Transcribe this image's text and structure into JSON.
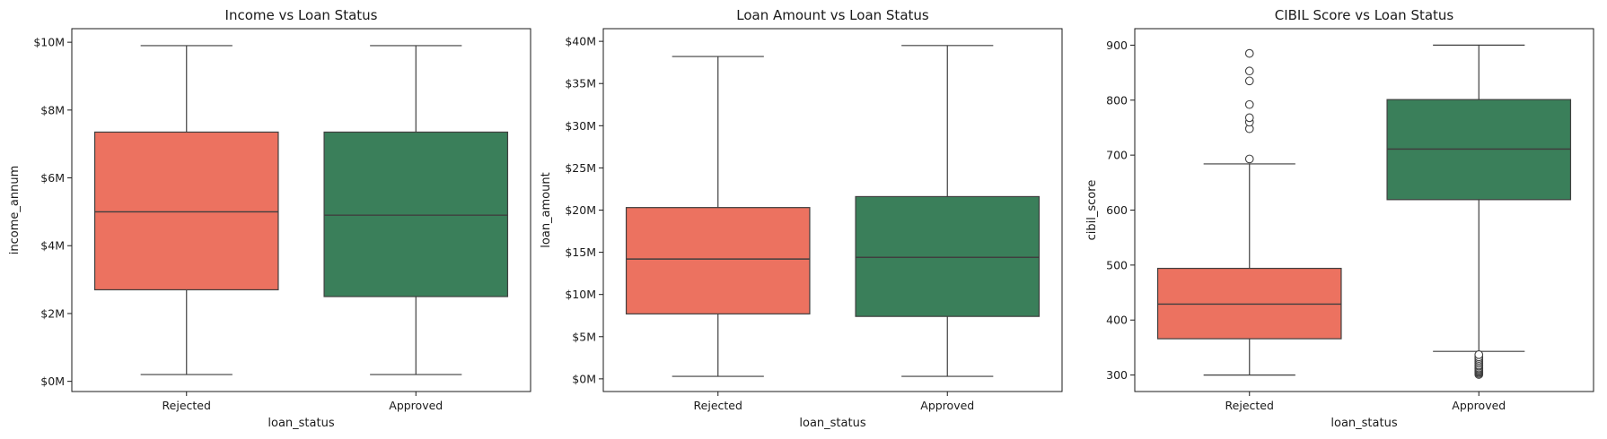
{
  "colors": {
    "rejected": "#ec7260",
    "approved": "#3a7f5a",
    "edge": "#3f3f3f",
    "outlier_face": "#ffffff"
  },
  "chart_data": [
    {
      "type": "boxplot",
      "title": "Income vs Loan Status",
      "xlabel": "loan_status",
      "ylabel": "income_annum",
      "categories": [
        "Rejected",
        "Approved"
      ],
      "ylim": [
        -300000,
        10400000
      ],
      "yticks": [
        0,
        2000000,
        4000000,
        6000000,
        8000000,
        10000000
      ],
      "ytick_labels": [
        "$0M",
        "$2M",
        "$4M",
        "$6M",
        "$8M",
        "$10M"
      ],
      "boxes": [
        {
          "category": "Rejected",
          "whisker_low": 200000,
          "q1": 2700000,
          "median": 5000000,
          "q3": 7350000,
          "whisker_high": 9900000,
          "outliers": []
        },
        {
          "category": "Approved",
          "whisker_low": 200000,
          "q1": 2500000,
          "median": 4900000,
          "q3": 7350000,
          "whisker_high": 9900000,
          "outliers": []
        }
      ]
    },
    {
      "type": "boxplot",
      "title": "Loan Amount vs Loan Status",
      "xlabel": "loan_status",
      "ylabel": "loan_amount",
      "categories": [
        "Rejected",
        "Approved"
      ],
      "ylim": [
        -1500000,
        41500000
      ],
      "yticks": [
        0,
        5000000,
        10000000,
        15000000,
        20000000,
        25000000,
        30000000,
        35000000,
        40000000
      ],
      "ytick_labels": [
        "$0M",
        "$5M",
        "$10M",
        "$15M",
        "$20M",
        "$25M",
        "$30M",
        "$35M",
        "$40M"
      ],
      "boxes": [
        {
          "category": "Rejected",
          "whisker_low": 300000,
          "q1": 7700000,
          "median": 14200000,
          "q3": 20300000,
          "whisker_high": 38200000,
          "outliers": []
        },
        {
          "category": "Approved",
          "whisker_low": 300000,
          "q1": 7400000,
          "median": 14400000,
          "q3": 21600000,
          "whisker_high": 39500000,
          "outliers": []
        }
      ]
    },
    {
      "type": "boxplot",
      "title": "CIBIL Score vs Loan Status",
      "xlabel": "loan_status",
      "ylabel": "cibil_score",
      "categories": [
        "Rejected",
        "Approved"
      ],
      "ylim": [
        270,
        930
      ],
      "yticks": [
        300,
        400,
        500,
        600,
        700,
        800,
        900
      ],
      "ytick_labels": [
        "300",
        "400",
        "500",
        "600",
        "700",
        "800",
        "900"
      ],
      "boxes": [
        {
          "category": "Rejected",
          "whisker_low": 300,
          "q1": 366,
          "median": 429,
          "q3": 494,
          "whisker_high": 684,
          "outliers": [
            693,
            748,
            760,
            768,
            792,
            835,
            853,
            885
          ]
        },
        {
          "category": "Approved",
          "whisker_low": 343,
          "q1": 619,
          "median": 711,
          "q3": 801,
          "whisker_high": 900,
          "outliers": [
            301,
            303,
            305,
            307,
            309,
            311,
            313,
            316,
            318,
            321,
            324,
            327,
            330,
            333,
            337
          ]
        }
      ]
    }
  ]
}
